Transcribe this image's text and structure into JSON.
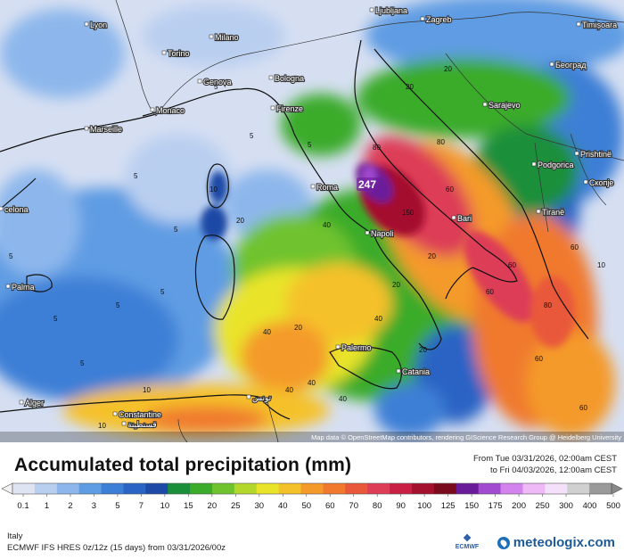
{
  "map": {
    "max_value_label": "247",
    "attribution": "Map data © OpenStreetMap contributors, rendering GIScience Research Group @ Heidelberg University",
    "cities": [
      {
        "name": "Lyon"
      },
      {
        "name": "Torino"
      },
      {
        "name": "Milano"
      },
      {
        "name": "Genova"
      },
      {
        "name": "Bologna"
      },
      {
        "name": "Monaco"
      },
      {
        "name": "Marseille"
      },
      {
        "name": "Firenze"
      },
      {
        "name": "Ljubljana"
      },
      {
        "name": "Zagreb"
      },
      {
        "name": "Timișoara"
      },
      {
        "name": "Београд"
      },
      {
        "name": "Sarajevo"
      },
      {
        "name": "Podgorica"
      },
      {
        "name": "Prishtinë"
      },
      {
        "name": "Скопје"
      },
      {
        "name": "Tiranë"
      },
      {
        "name": "Bari"
      },
      {
        "name": "Napoli"
      },
      {
        "name": "Roma"
      },
      {
        "name": "Palermo"
      },
      {
        "name": "Catania"
      },
      {
        "name": "Palma"
      },
      {
        "name": "celona"
      },
      {
        "name": "Alger"
      },
      {
        "name": "Constantine"
      },
      {
        "name": "قسنطينة"
      },
      {
        "name": "تونس"
      }
    ],
    "contour_labels": [
      "5",
      "5",
      "5",
      "5",
      "5",
      "10",
      "10",
      "10",
      "20",
      "20",
      "20",
      "20",
      "40",
      "40",
      "40",
      "40",
      "60",
      "60",
      "60",
      "60",
      "80",
      "80",
      "80",
      "150",
      "20",
      "40",
      "20",
      "5",
      "5",
      "5",
      "10",
      "40",
      "20",
      "60",
      "60",
      "5",
      "5"
    ]
  },
  "legend": {
    "title": "Accumulated total precipitation (mm)",
    "from_line": "From Tue 03/31/2026, 02:00am CEST",
    "to_line": "to Fri 04/03/2026, 12:00am CEST",
    "ticks": [
      "0.1",
      "1",
      "2",
      "3",
      "5",
      "7",
      "10",
      "15",
      "20",
      "25",
      "30",
      "40",
      "50",
      "60",
      "70",
      "80",
      "90",
      "100",
      "125",
      "150",
      "175",
      "200",
      "250",
      "300",
      "400",
      "500"
    ],
    "colors": [
      "#dfe4f2",
      "#b9cff0",
      "#8db7ec",
      "#5e9ce3",
      "#3c7fd6",
      "#2a64c4",
      "#1d4aa6",
      "#1a8f3a",
      "#3bab2c",
      "#6fc32d",
      "#b3d82b",
      "#e9e42a",
      "#f5c12a",
      "#f49a2a",
      "#f0792e",
      "#e9583a",
      "#dd3d57",
      "#c91f45",
      "#a4112f",
      "#7a0b1f",
      "#6a1b9a",
      "#a24ad0",
      "#d383ee",
      "#efb9f7",
      "#f4e0fa",
      "#d0d0d0",
      "#9a9a9a"
    ]
  },
  "footer": {
    "region": "Italy",
    "model": "ECMWF IFS HRES 0z/12z (15 days) from  03/31/2026/00z",
    "ecmwf_logo_text": "ECMWF",
    "brand": "meteologix.com"
  }
}
